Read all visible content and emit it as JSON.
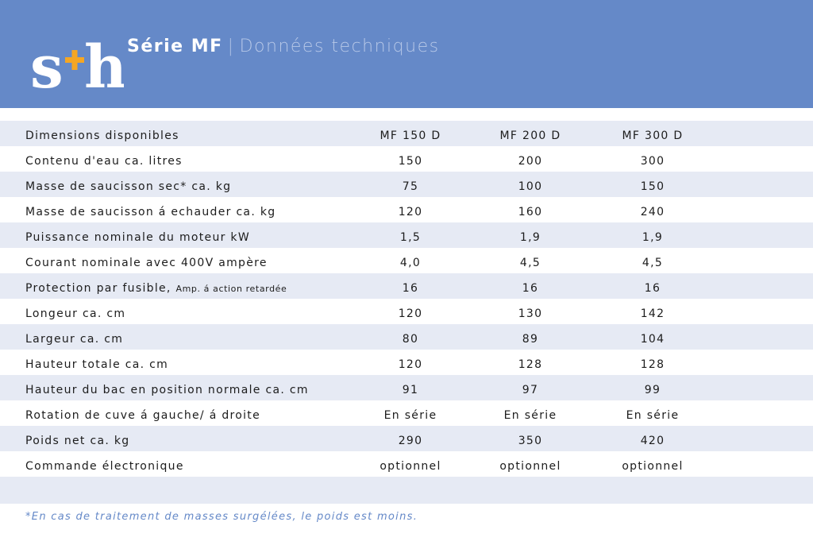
{
  "header": {
    "logo_text": "s+h",
    "series": "Série MF",
    "separator": "|",
    "subtitle": "Données techniques"
  },
  "colors": {
    "header_bg": "#6589c8",
    "row_shade": "#e6eaf4",
    "logo_plus": "#f5a623",
    "footnote": "#6589c8"
  },
  "table": {
    "header": {
      "label": "Dimensions disponibles",
      "values": [
        "MF 150 D",
        "MF 200 D",
        "MF 300 D"
      ]
    },
    "rows": [
      {
        "label": "Contenu d'eau ca. litres",
        "values": [
          "150",
          "200",
          "300"
        ]
      },
      {
        "label": "Masse de saucisson sec* ca. kg",
        "values": [
          "75",
          "100",
          "150"
        ]
      },
      {
        "label": "Masse de saucisson á echauder ca. kg",
        "values": [
          "120",
          "160",
          "240"
        ]
      },
      {
        "label": "Puissance nominale du moteur kW",
        "values": [
          "1,5",
          "1,9",
          "1,9"
        ]
      },
      {
        "label": "Courant nominale avec 400V ampère",
        "values": [
          "4,0",
          "4,5",
          "4,5"
        ]
      },
      {
        "label": "Protection par fusible,",
        "note": "Amp. á action retardée",
        "values": [
          "16",
          "16",
          "16"
        ]
      },
      {
        "label": "Longeur ca. cm",
        "values": [
          "120",
          "130",
          "142"
        ]
      },
      {
        "label": "Largeur ca. cm",
        "values": [
          "80",
          "89",
          "104"
        ]
      },
      {
        "label": "Hauteur totale ca. cm",
        "values": [
          "120",
          "128",
          "128"
        ]
      },
      {
        "label": "Hauteur du bac en position normale ca. cm",
        "values": [
          "91",
          "97",
          "99"
        ]
      },
      {
        "label": "Rotation de cuve á gauche/ á droite",
        "values": [
          "En série",
          "En série",
          "En série"
        ]
      },
      {
        "label": "Poids net ca. kg",
        "values": [
          "290",
          "350",
          "420"
        ]
      },
      {
        "label": "Commande électronique",
        "values": [
          "optionnel",
          "optionnel",
          "optionnel"
        ]
      }
    ]
  },
  "footnote": "*En cas de traitement de masses surgélées, le poids est moins."
}
